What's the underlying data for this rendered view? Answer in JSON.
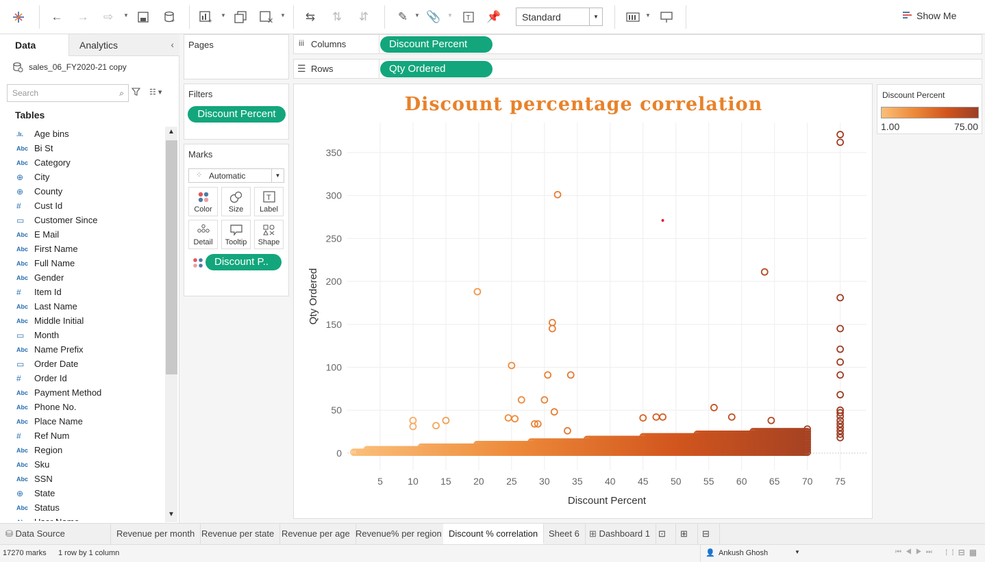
{
  "toolbar": {
    "view_mode": "Standard",
    "show_me_label": "Show Me"
  },
  "data_pane": {
    "tab_data": "Data",
    "tab_analytics": "Analytics",
    "datasource_name": "sales_06_FY2020-21 copy",
    "search_placeholder": "Search",
    "tables_header": "Tables",
    "fields": [
      {
        "type": "bin",
        "type_label": ".lı.",
        "name": "Age bins"
      },
      {
        "type": "str",
        "type_label": "Abc",
        "name": "Bi St"
      },
      {
        "type": "str",
        "type_label": "Abc",
        "name": "Category"
      },
      {
        "type": "geo",
        "type_label": "⊕",
        "name": "City"
      },
      {
        "type": "geo",
        "type_label": "⊕",
        "name": "County"
      },
      {
        "type": "num",
        "type_label": "#",
        "name": "Cust Id"
      },
      {
        "type": "date",
        "type_label": "▭",
        "name": "Customer Since"
      },
      {
        "type": "str",
        "type_label": "Abc",
        "name": "E Mail"
      },
      {
        "type": "str",
        "type_label": "Abc",
        "name": "First Name"
      },
      {
        "type": "str",
        "type_label": "Abc",
        "name": "Full Name"
      },
      {
        "type": "str",
        "type_label": "Abc",
        "name": "Gender"
      },
      {
        "type": "num",
        "type_label": "#",
        "name": "Item Id"
      },
      {
        "type": "str",
        "type_label": "Abc",
        "name": "Last Name"
      },
      {
        "type": "str",
        "type_label": "Abc",
        "name": "Middle Initial"
      },
      {
        "type": "date",
        "type_label": "▭",
        "name": "Month"
      },
      {
        "type": "str",
        "type_label": "Abc",
        "name": "Name Prefix"
      },
      {
        "type": "date",
        "type_label": "▭",
        "name": "Order Date"
      },
      {
        "type": "num",
        "type_label": "#",
        "name": "Order Id"
      },
      {
        "type": "str",
        "type_label": "Abc",
        "name": "Payment Method"
      },
      {
        "type": "str",
        "type_label": "Abc",
        "name": "Phone No."
      },
      {
        "type": "str",
        "type_label": "Abc",
        "name": "Place Name"
      },
      {
        "type": "num",
        "type_label": "#",
        "name": "Ref Num"
      },
      {
        "type": "str",
        "type_label": "Abc",
        "name": "Region"
      },
      {
        "type": "str",
        "type_label": "Abc",
        "name": "Sku"
      },
      {
        "type": "str",
        "type_label": "Abc",
        "name": "SSN"
      },
      {
        "type": "geo",
        "type_label": "⊕",
        "name": "State"
      },
      {
        "type": "str",
        "type_label": "Abc",
        "name": "Status"
      },
      {
        "type": "str",
        "type_label": "Abc",
        "name": "User Name"
      }
    ]
  },
  "pages_card": {
    "title": "Pages"
  },
  "filters_card": {
    "title": "Filters",
    "pill": "Discount Percent"
  },
  "marks_card": {
    "title": "Marks",
    "mark_type": "Automatic",
    "buttons": [
      "Color",
      "Size",
      "Label",
      "Detail",
      "Tooltip",
      "Shape"
    ],
    "color_pill": "Discount P.."
  },
  "shelves": {
    "columns_label": "Columns",
    "columns_pill": "Discount Percent",
    "rows_label": "Rows",
    "rows_pill": "Qty Ordered"
  },
  "legend": {
    "title": "Discount Percent",
    "min": "1.00",
    "max": "75.00",
    "colors": {
      "low": "#fbbf7a",
      "mid": "#ed8a3a",
      "high": "#d2561e",
      "max": "#9c3e24"
    }
  },
  "chart_data": {
    "type": "scatter",
    "title": "Discount percentage correlation",
    "xlabel": "Discount Percent",
    "ylabel": "Qty Ordered",
    "xlim": [
      0,
      79
    ],
    "ylim": [
      -20,
      385
    ],
    "xticks": [
      5,
      10,
      15,
      20,
      25,
      30,
      35,
      40,
      45,
      50,
      55,
      60,
      65,
      70,
      75
    ],
    "yticks": [
      0,
      50,
      100,
      150,
      200,
      250,
      300,
      350
    ],
    "grid": true,
    "points": [
      [
        10,
        38
      ],
      [
        10,
        31
      ],
      [
        13.5,
        32
      ],
      [
        15,
        38
      ],
      [
        19.8,
        188
      ],
      [
        24.5,
        41
      ],
      [
        25,
        102
      ],
      [
        25.5,
        40
      ],
      [
        26.5,
        62
      ],
      [
        28.5,
        34
      ],
      [
        29,
        34
      ],
      [
        30,
        62
      ],
      [
        30.5,
        91
      ],
      [
        31.2,
        152
      ],
      [
        31.2,
        145
      ],
      [
        31.5,
        48
      ],
      [
        32,
        301
      ],
      [
        34,
        91
      ],
      [
        33.5,
        26
      ],
      [
        45,
        41
      ],
      [
        47,
        42
      ],
      [
        48,
        42
      ],
      [
        55.8,
        53
      ],
      [
        58.5,
        42
      ],
      [
        63.5,
        211
      ],
      [
        64.5,
        38
      ],
      [
        75,
        371
      ],
      [
        75,
        362
      ],
      [
        75,
        181
      ],
      [
        75,
        145
      ],
      [
        75,
        121
      ],
      [
        75,
        106
      ],
      [
        75,
        91
      ],
      [
        75,
        68
      ],
      [
        75,
        50
      ],
      [
        75,
        47
      ],
      [
        75,
        43
      ],
      [
        75,
        38
      ],
      [
        75,
        34
      ],
      [
        75,
        30
      ],
      [
        75,
        26
      ],
      [
        75,
        22
      ],
      [
        75,
        18
      ]
    ],
    "dense_band": {
      "x_range": [
        1,
        70
      ],
      "y_range": [
        1,
        28
      ]
    },
    "highlight_point": [
      48,
      271
    ]
  },
  "sheet_tabs": {
    "data_source": "Data Source",
    "tabs": [
      "Revenue per month",
      "Revenue per state",
      "Revenue per age",
      "Revenue% per region",
      "Discount % correlation",
      "Sheet 6",
      "Dashboard 1"
    ],
    "active": "Discount % correlation"
  },
  "status": {
    "marks": "17270 marks",
    "rows_cols": "1 row by 1 column",
    "user": "Ankush Ghosh"
  }
}
